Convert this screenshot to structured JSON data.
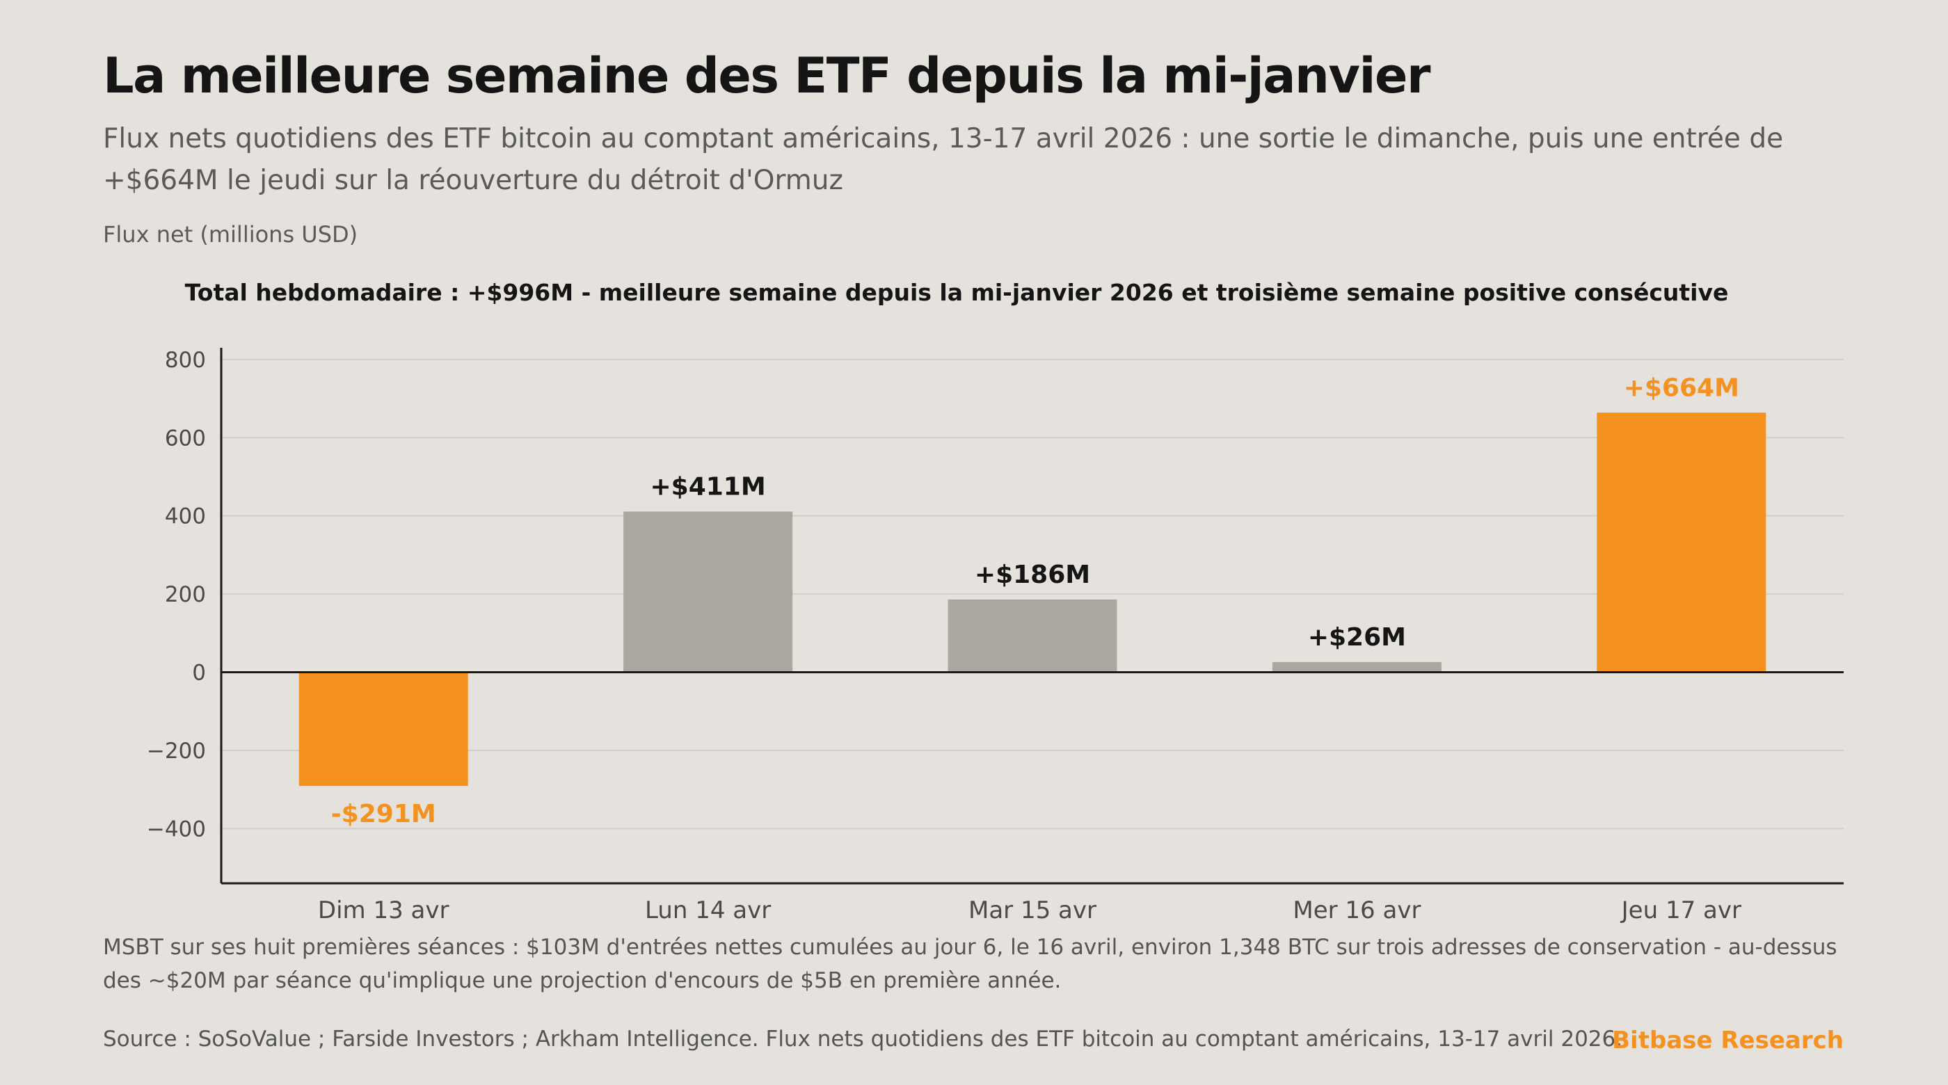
{
  "header": {
    "title": "La meilleure semaine des ETF depuis la mi-janvier",
    "subtitle": "Flux nets quotidiens des ETF bitcoin au comptant américains, 13-17 avril 2026 : une sortie le dimanche, puis une entrée de +$664M le jeudi sur la réouverture du détroit d'Ormuz",
    "unit_label": "Flux net (millions USD)"
  },
  "chart_data": {
    "type": "bar",
    "annotation": "Total hebdomadaire : +$996M - meilleure semaine depuis la mi-janvier 2026 et troisième semaine positive consécutive",
    "ylabel": "Flux net (millions USD)",
    "categories": [
      "Dim 13 avr",
      "Lun 14 avr",
      "Mar 15 avr",
      "Mer 16 avr",
      "Jeu 17 avr"
    ],
    "values": [
      -291,
      411,
      186,
      26,
      664
    ],
    "value_labels": [
      "-$291M",
      "+$411M",
      "+$186M",
      "+$26M",
      "+$664M"
    ],
    "highlight": [
      true,
      false,
      false,
      false,
      true
    ],
    "ylim": [
      -540,
      830
    ],
    "yticks": [
      800,
      600,
      400,
      200,
      0,
      -200,
      -400
    ],
    "grid": true,
    "colors": {
      "highlight": "#f5911e",
      "normal": "#aaa6a0",
      "grid": "#d2cec9",
      "axis": "#1a1a1a"
    }
  },
  "footer": {
    "note": "MSBT sur ses huit premières séances : $103M d'entrées nettes cumulées au jour 6, le 16 avril, environ 1,348 BTC sur trois adresses de conservation - au-dessus des ~$20M par séance qu'implique une projection d'encours de $5B en première année.",
    "source": "Source : SoSoValue ; Farside Investors ; Arkham Intelligence. Flux nets quotidiens des ETF bitcoin au comptant américains, 13-17 avril 2026.",
    "brand": "Bitbase Research"
  }
}
